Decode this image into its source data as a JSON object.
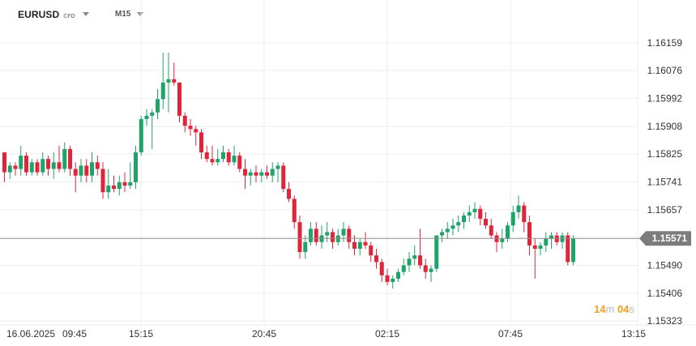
{
  "toolbar": {
    "symbol": "EURUSD",
    "symbol_type": "CFD",
    "timeframe": "M15"
  },
  "colors": {
    "bull": "#1fa36b",
    "bear": "#e0243a",
    "grid": "#eeeeee",
    "price_line": "#909090",
    "price_tag": "#7c7c7c",
    "countdown_digits": "#f0a21c"
  },
  "countdown": {
    "minutes": "14",
    "minutes_unit": "m",
    "seconds": "04",
    "seconds_unit": "s"
  },
  "chart_data": {
    "type": "candlestick",
    "timeframe": "M15",
    "y_ticks": [
      "1.16159",
      "1.16076",
      "1.15992",
      "1.15908",
      "1.15825",
      "1.15741",
      "1.15657",
      "1.15571",
      "1.15490",
      "1.15406",
      "1.15323"
    ],
    "x_ticks": [
      "16.06.2025",
      "09:45",
      "15:15",
      "20:45",
      "02:15",
      "07:45",
      "13:15"
    ],
    "current_price": "1.15571",
    "ylim": [
      1.15323,
      1.16159
    ],
    "candles_ohlc": [
      [
        1.1583,
        1.1583,
        1.1574,
        1.1577
      ],
      [
        1.1577,
        1.158,
        1.1575,
        1.1579
      ],
      [
        1.1579,
        1.158,
        1.1576,
        1.1578
      ],
      [
        1.1578,
        1.1585,
        1.1576,
        1.1582
      ],
      [
        1.1582,
        1.1583,
        1.1576,
        1.1577
      ],
      [
        1.1577,
        1.1581,
        1.1576,
        1.158
      ],
      [
        1.158,
        1.1581,
        1.1576,
        1.1577
      ],
      [
        1.1577,
        1.1583,
        1.1576,
        1.1581
      ],
      [
        1.1581,
        1.1582,
        1.1576,
        1.1578
      ],
      [
        1.1578,
        1.1583,
        1.1575,
        1.158
      ],
      [
        1.158,
        1.1585,
        1.1577,
        1.1578
      ],
      [
        1.1578,
        1.1586,
        1.1577,
        1.1584
      ],
      [
        1.1584,
        1.1585,
        1.1576,
        1.1578
      ],
      [
        1.1578,
        1.158,
        1.1571,
        1.1576
      ],
      [
        1.1576,
        1.1581,
        1.1574,
        1.1579
      ],
      [
        1.1579,
        1.1581,
        1.1574,
        1.1576
      ],
      [
        1.1576,
        1.1583,
        1.1574,
        1.158
      ],
      [
        1.158,
        1.1582,
        1.1576,
        1.1578
      ],
      [
        1.1578,
        1.158,
        1.1569,
        1.1571
      ],
      [
        1.1571,
        1.1578,
        1.1569,
        1.1573
      ],
      [
        1.1573,
        1.1576,
        1.1571,
        1.1572
      ],
      [
        1.1572,
        1.1576,
        1.157,
        1.1574
      ],
      [
        1.1574,
        1.1577,
        1.1571,
        1.1573
      ],
      [
        1.1573,
        1.158,
        1.1572,
        1.1574
      ],
      [
        1.1574,
        1.1585,
        1.1572,
        1.1583
      ],
      [
        1.1583,
        1.1594,
        1.1582,
        1.1593
      ],
      [
        1.1593,
        1.1596,
        1.1591,
        1.1594
      ],
      [
        1.1594,
        1.1596,
        1.1584,
        1.1595
      ],
      [
        1.1595,
        1.1602,
        1.1593,
        1.1599
      ],
      [
        1.1599,
        1.1613,
        1.1596,
        1.1604
      ],
      [
        1.1604,
        1.1613,
        1.1595,
        1.1605
      ],
      [
        1.1605,
        1.161,
        1.1603,
        1.1604
      ],
      [
        1.1604,
        1.1604,
        1.1592,
        1.1594
      ],
      [
        1.1594,
        1.1595,
        1.1589,
        1.1591
      ],
      [
        1.1591,
        1.1593,
        1.1588,
        1.159
      ],
      [
        1.159,
        1.1591,
        1.1585,
        1.1589
      ],
      [
        1.1589,
        1.159,
        1.1581,
        1.1583
      ],
      [
        1.1583,
        1.1585,
        1.158,
        1.1581
      ],
      [
        1.1581,
        1.1585,
        1.1579,
        1.158
      ],
      [
        1.158,
        1.1584,
        1.1579,
        1.1581
      ],
      [
        1.1581,
        1.1585,
        1.158,
        1.1583
      ],
      [
        1.1583,
        1.1584,
        1.1579,
        1.158
      ],
      [
        1.158,
        1.1585,
        1.1579,
        1.1582
      ],
      [
        1.1582,
        1.1583,
        1.1577,
        1.1578
      ],
      [
        1.1578,
        1.1581,
        1.1572,
        1.1576
      ],
      [
        1.1576,
        1.1578,
        1.1573,
        1.1577
      ],
      [
        1.1577,
        1.1579,
        1.1574,
        1.1576
      ],
      [
        1.1576,
        1.1578,
        1.1574,
        1.1577
      ],
      [
        1.1577,
        1.1579,
        1.1575,
        1.1576
      ],
      [
        1.1576,
        1.158,
        1.1574,
        1.1578
      ],
      [
        1.1578,
        1.158,
        1.1574,
        1.1579
      ],
      [
        1.1579,
        1.158,
        1.1571,
        1.1572
      ],
      [
        1.1572,
        1.1574,
        1.1568,
        1.1569
      ],
      [
        1.1569,
        1.157,
        1.156,
        1.1562
      ],
      [
        1.1562,
        1.1564,
        1.1551,
        1.1553
      ],
      [
        1.1553,
        1.1558,
        1.1551,
        1.1556
      ],
      [
        1.1556,
        1.1562,
        1.1555,
        1.156
      ],
      [
        1.156,
        1.1562,
        1.1555,
        1.1556
      ],
      [
        1.1556,
        1.1561,
        1.1554,
        1.1558
      ],
      [
        1.1558,
        1.1562,
        1.1556,
        1.1559
      ],
      [
        1.1559,
        1.156,
        1.1554,
        1.1556
      ],
      [
        1.1556,
        1.156,
        1.1555,
        1.1558
      ],
      [
        1.1558,
        1.1562,
        1.1556,
        1.156
      ],
      [
        1.156,
        1.1561,
        1.1554,
        1.1556
      ],
      [
        1.1556,
        1.1558,
        1.1552,
        1.1554
      ],
      [
        1.1554,
        1.1557,
        1.1552,
        1.1556
      ],
      [
        1.1556,
        1.1559,
        1.1554,
        1.1555
      ],
      [
        1.1555,
        1.1556,
        1.155,
        1.1552
      ],
      [
        1.1552,
        1.1554,
        1.1548,
        1.155
      ],
      [
        1.155,
        1.1551,
        1.1544,
        1.1546
      ],
      [
        1.1546,
        1.1548,
        1.1543,
        1.1544
      ],
      [
        1.1544,
        1.1546,
        1.1542,
        1.1545
      ],
      [
        1.1545,
        1.1548,
        1.1544,
        1.1547
      ],
      [
        1.1547,
        1.1551,
        1.1546,
        1.1549
      ],
      [
        1.1549,
        1.1553,
        1.1547,
        1.1551
      ],
      [
        1.1551,
        1.1555,
        1.1549,
        1.1552
      ],
      [
        1.1552,
        1.156,
        1.1548,
        1.1549
      ],
      [
        1.1549,
        1.1551,
        1.1545,
        1.1547
      ],
      [
        1.1547,
        1.1549,
        1.1544,
        1.1548
      ],
      [
        1.1548,
        1.1558,
        1.1547,
        1.1558
      ],
      [
        1.1558,
        1.156,
        1.1556,
        1.1559
      ],
      [
        1.1559,
        1.1562,
        1.1557,
        1.156
      ],
      [
        1.156,
        1.1563,
        1.1558,
        1.1561
      ],
      [
        1.1561,
        1.1564,
        1.1559,
        1.1562
      ],
      [
        1.1562,
        1.1565,
        1.156,
        1.1564
      ],
      [
        1.1564,
        1.1567,
        1.1562,
        1.1565
      ],
      [
        1.1565,
        1.1568,
        1.1563,
        1.1566
      ],
      [
        1.1566,
        1.1567,
        1.1561,
        1.1563
      ],
      [
        1.1563,
        1.1565,
        1.156,
        1.1561
      ],
      [
        1.1561,
        1.1563,
        1.1557,
        1.1558
      ],
      [
        1.1558,
        1.1559,
        1.1553,
        1.1556
      ],
      [
        1.1556,
        1.156,
        1.1554,
        1.1557
      ],
      [
        1.1557,
        1.1562,
        1.1556,
        1.1561
      ],
      [
        1.1561,
        1.1567,
        1.1559,
        1.1565
      ],
      [
        1.1565,
        1.157,
        1.1563,
        1.1567
      ],
      [
        1.1567,
        1.1568,
        1.1559,
        1.1562
      ],
      [
        1.1562,
        1.1564,
        1.1552,
        1.1555
      ],
      [
        1.1555,
        1.1557,
        1.1545,
        1.1554
      ],
      [
        1.1554,
        1.1556,
        1.1552,
        1.1555
      ],
      [
        1.1555,
        1.1559,
        1.1553,
        1.1557
      ],
      [
        1.1557,
        1.1559,
        1.1554,
        1.1558
      ],
      [
        1.1558,
        1.1559,
        1.1555,
        1.1556
      ],
      [
        1.1556,
        1.1559,
        1.1554,
        1.1558
      ],
      [
        1.1558,
        1.1559,
        1.1549,
        1.155
      ],
      [
        1.155,
        1.1558,
        1.1549,
        1.1557
      ]
    ]
  }
}
